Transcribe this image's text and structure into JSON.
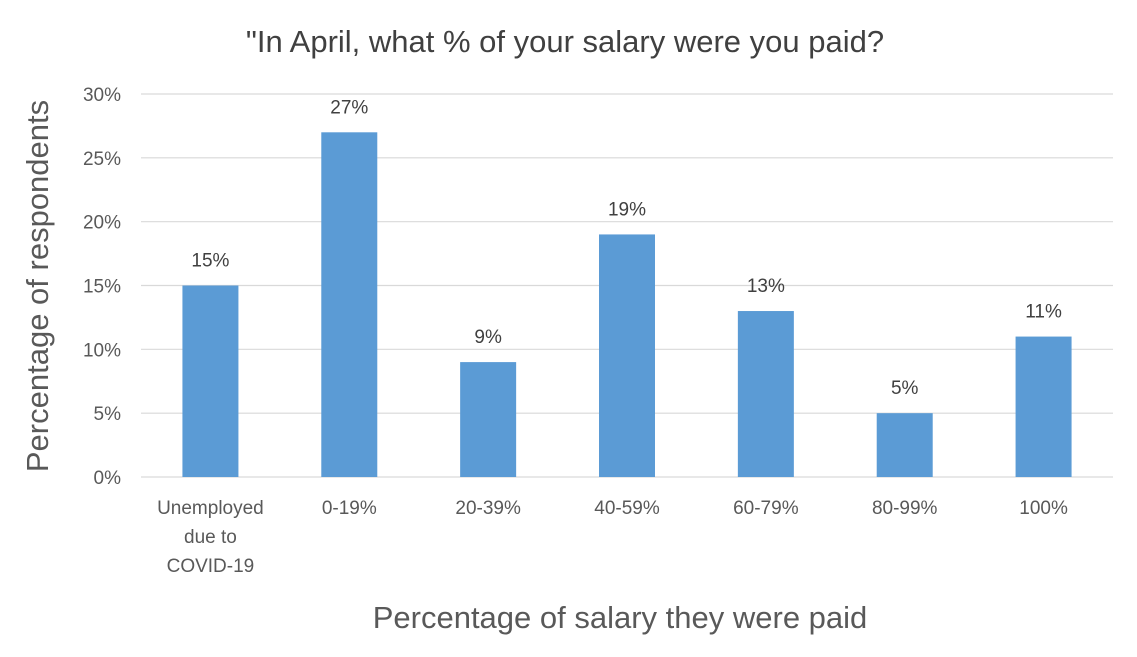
{
  "chart_data": {
    "type": "bar",
    "title": "\"In April, what % of your salary were you paid?",
    "xlabel": "Percentage of salary they were paid",
    "ylabel": "Percentage of respondents",
    "categories": [
      [
        "Unemployed",
        "due to",
        "COVID-19"
      ],
      [
        "0-19%"
      ],
      [
        "20-39%"
      ],
      [
        "40-59%"
      ],
      [
        "60-79%"
      ],
      [
        "80-99%"
      ],
      [
        "100%"
      ]
    ],
    "values": [
      15,
      27,
      9,
      19,
      13,
      5,
      11
    ],
    "data_labels": [
      "15%",
      "27%",
      "9%",
      "19%",
      "13%",
      "5%",
      "11%"
    ],
    "ylim": [
      0,
      30
    ],
    "yticks": [
      0,
      5,
      10,
      15,
      20,
      25,
      30
    ],
    "ytick_labels": [
      "0%",
      "5%",
      "10%",
      "15%",
      "20%",
      "25%",
      "30%"
    ],
    "grid": true,
    "legend": "none",
    "colors": {
      "bar": "#5b9bd5",
      "grid": "#d9d9d9",
      "axis": "#d9d9d9"
    }
  }
}
